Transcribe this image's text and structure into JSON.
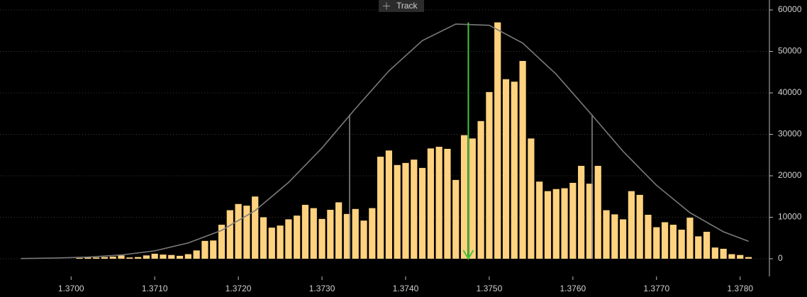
{
  "chart_data": {
    "type": "histogram",
    "button": "Track",
    "bins": [
      1.37005,
      1.37015,
      1.37025,
      1.37035,
      1.37045,
      1.37055,
      1.37065,
      1.37075,
      1.37085,
      1.37095,
      1.37105,
      1.37115,
      1.37125,
      1.37135,
      1.37145,
      1.37155,
      1.37165,
      1.37175,
      1.37185,
      1.37195,
      1.37205,
      1.37215,
      1.37225,
      1.37235,
      1.37245,
      1.37255,
      1.37265,
      1.37275,
      1.37285,
      1.37295,
      1.37305,
      1.37315,
      1.37325,
      1.37335,
      1.37345,
      1.37355,
      1.37365,
      1.37375,
      1.37385,
      1.37395,
      1.37405,
      1.37415,
      1.37425,
      1.37435,
      1.37445,
      1.37455,
      1.37465,
      1.37475,
      1.37485,
      1.37495,
      1.37505,
      1.37515,
      1.37525,
      1.37535,
      1.37545,
      1.37555,
      1.37565,
      1.37575,
      1.37585,
      1.37595,
      1.37605,
      1.37615,
      1.37625,
      1.37635,
      1.37645,
      1.37655,
      1.37665,
      1.37675,
      1.37685,
      1.37695,
      1.37705,
      1.37715,
      1.37725,
      1.37735,
      1.37745,
      1.37755,
      1.37765,
      1.37775,
      1.37785,
      1.37795,
      1.37805,
      1.37815
    ],
    "values": [
      200,
      300,
      300,
      400,
      500,
      800,
      300,
      400,
      800,
      1200,
      1000,
      900,
      700,
      1100,
      2000,
      4300,
      4400,
      8200,
      11700,
      13200,
      12800,
      15000,
      10000,
      7500,
      8000,
      9500,
      10400,
      13000,
      12200,
      9600,
      11800,
      13600,
      10800,
      12000,
      9200,
      12200,
      24600,
      26100,
      22600,
      23100,
      23900,
      21900,
      26600,
      27000,
      26500,
      19000,
      29800,
      29000,
      33200,
      40200,
      57000,
      43300,
      42700,
      47700,
      29000,
      18600,
      16300,
      16800,
      17000,
      18300,
      22400,
      18100,
      22400,
      11700,
      10700,
      9500,
      16300,
      15400,
      10600,
      7600,
      8800,
      8200,
      7000,
      9900,
      5400,
      6500,
      2700,
      2400,
      1100,
      900,
      400
    ],
    "color": "#ffd27f",
    "curve": {
      "color": "#7a7a7a",
      "x": [
        1.3694,
        1.3698,
        1.3702,
        1.3706,
        1.371,
        1.3714,
        1.3718,
        1.3722,
        1.3726,
        1.373,
        1.3734,
        1.3738,
        1.3742,
        1.3746,
        1.375,
        1.3754,
        1.3758,
        1.3762,
        1.3766,
        1.377,
        1.3774,
        1.3778,
        1.3781
      ],
      "values": [
        59,
        160,
        390,
        900,
        1900,
        3800,
        6840,
        11600,
        18400,
        26700,
        36200,
        45300,
        52600,
        56600,
        56300,
        52000,
        44500,
        35300,
        25900,
        17700,
        11100,
        6500,
        4200
      ]
    },
    "vlines": {
      "color": "#8a8a8a",
      "x": [
        1.37333,
        1.37623
      ],
      "values": [
        34800,
        34800
      ]
    },
    "arrow": {
      "color": "#3fc43f",
      "x": 1.37475,
      "values": [
        57000,
        0
      ]
    },
    "xlim": [
      1.36915,
      1.37835
    ],
    "ylim": [
      0,
      62400
    ],
    "xticks": [
      {
        "value": 1.37,
        "label": "1.3700"
      },
      {
        "value": 1.371,
        "label": "1.3710"
      },
      {
        "value": 1.372,
        "label": "1.3720"
      },
      {
        "value": 1.373,
        "label": "1.3730"
      },
      {
        "value": 1.374,
        "label": "1.3740"
      },
      {
        "value": 1.375,
        "label": "1.3750"
      },
      {
        "value": 1.376,
        "label": "1.3760"
      },
      {
        "value": 1.377,
        "label": "1.3770"
      },
      {
        "value": 1.378,
        "label": "1.3780"
      }
    ],
    "yticks": [
      0,
      10000,
      20000,
      30000,
      40000,
      50000,
      60000
    ],
    "grid": true
  }
}
